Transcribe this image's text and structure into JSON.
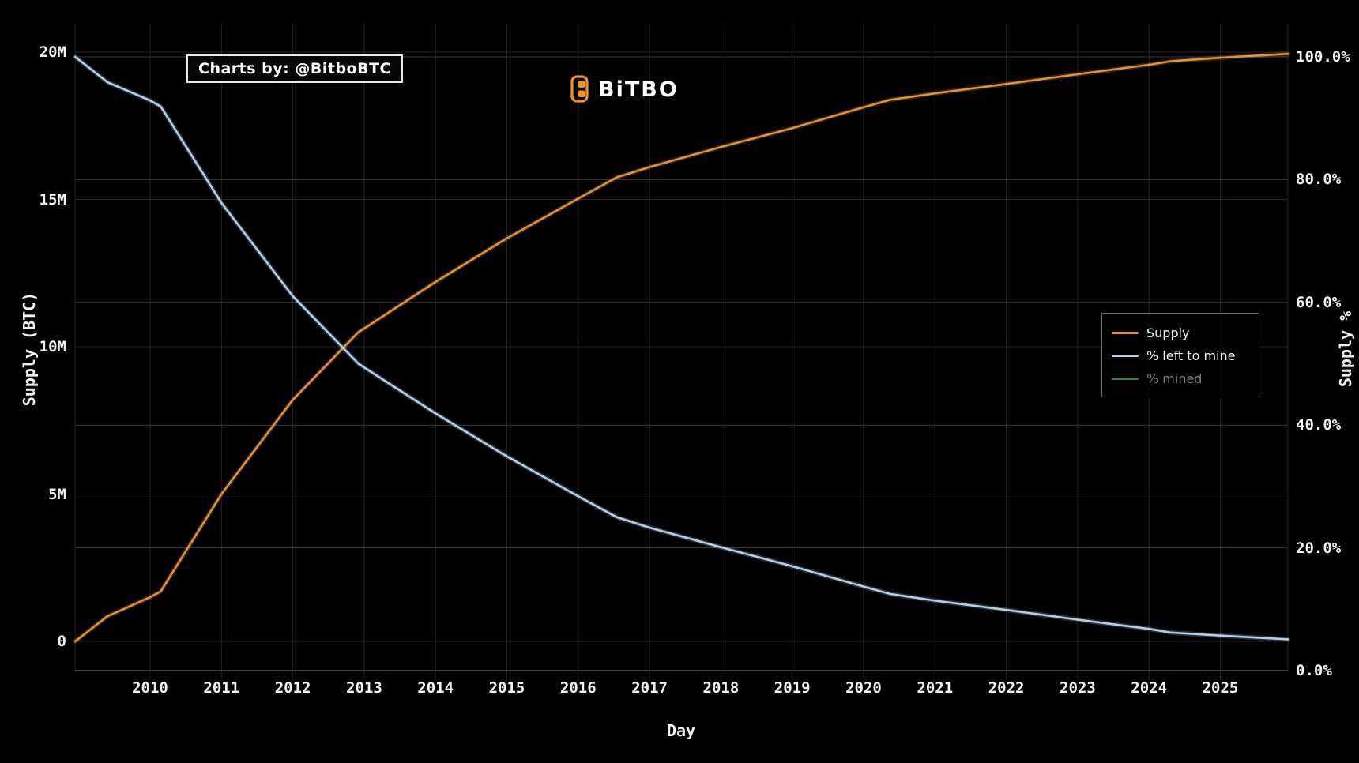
{
  "branding": {
    "annotation": "Charts by: @BitboBTC",
    "logo_text": "BiTBO",
    "logo_color": "#f7931a"
  },
  "colors": {
    "background": "#000000",
    "grid_left_axis": "#242424",
    "grid_right_axis": "#3a3a3a",
    "baseline": "#4f4f4f",
    "text": "#f2f2f2",
    "muted_text": "#7d7d7d",
    "supply_line": "#e0923f",
    "left_to_mine_line": "#b4cfe8",
    "mined_line": "#3f7a4c"
  },
  "chart_data": {
    "type": "line",
    "grid": true,
    "legend_position": "center-right",
    "x_axis": {
      "title": "Day",
      "tick_years": [
        2010,
        2011,
        2012,
        2013,
        2014,
        2015,
        2016,
        2017,
        2018,
        2019,
        2020,
        2021,
        2022,
        2023,
        2024,
        2025
      ],
      "range_years": [
        2008.95,
        2025.95
      ]
    },
    "y_left_axis": {
      "title": "Supply (BTC)",
      "ticks": [
        {
          "label": "20M",
          "value": 20
        },
        {
          "label": "15M",
          "value": 15
        },
        {
          "label": "10M",
          "value": 10
        },
        {
          "label": "5M",
          "value": 5
        },
        {
          "label": "0",
          "value": 0
        }
      ],
      "range_millions": [
        0,
        20
      ]
    },
    "y_right_axis": {
      "title": "Supply %",
      "ticks": [
        {
          "label": "100.0%",
          "value": 100
        },
        {
          "label": "80.0%",
          "value": 80
        },
        {
          "label": "60.0%",
          "value": 60
        },
        {
          "label": "40.0%",
          "value": 40
        },
        {
          "label": "20.0%",
          "value": 20
        },
        {
          "label": "0.0%",
          "value": 0
        }
      ],
      "range_percent": [
        0,
        100
      ]
    },
    "x_years": [
      2008.95,
      2009.4,
      2010,
      2010.15,
      2011,
      2012,
      2012.92,
      2013,
      2014,
      2015,
      2016,
      2016.54,
      2017,
      2018,
      2019,
      2020,
      2020.37,
      2021,
      2022,
      2023,
      2024,
      2024.3,
      2025,
      2025.95
    ],
    "series": [
      {
        "name": "Supply",
        "axis": "left",
        "color": "#e0923f",
        "visible": true,
        "unit": "million BTC",
        "values": [
          0,
          0.85,
          1.5,
          1.7,
          5.0,
          8.2,
          10.5,
          10.62,
          12.2,
          13.68,
          15.03,
          15.75,
          16.1,
          16.78,
          17.42,
          18.13,
          18.38,
          18.6,
          18.92,
          19.25,
          19.57,
          19.69,
          19.81,
          19.94
        ]
      },
      {
        "name": "% left to mine",
        "axis": "right",
        "color": "#b4cfe8",
        "visible": true,
        "unit": "percent",
        "values": [
          100,
          95.9,
          92.9,
          91.9,
          76.2,
          61.0,
          50.0,
          49.4,
          41.9,
          34.9,
          28.4,
          25.0,
          23.3,
          20.1,
          17.0,
          13.7,
          12.5,
          11.4,
          9.9,
          8.3,
          6.8,
          6.2,
          5.7,
          5.1
        ]
      },
      {
        "name": "% mined",
        "axis": "right",
        "color": "#3f7a4c",
        "visible": false,
        "unit": "percent",
        "values": null
      }
    ]
  }
}
